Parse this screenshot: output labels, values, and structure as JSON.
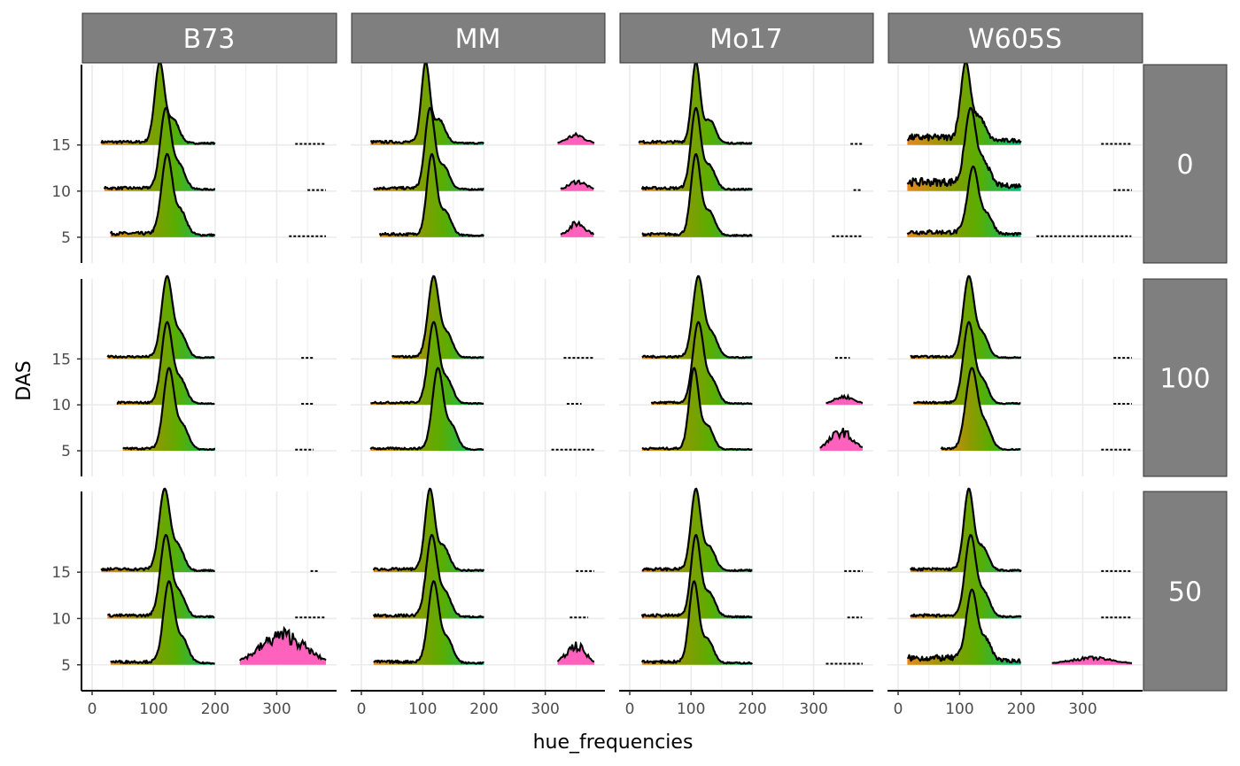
{
  "chart_data": {
    "type": "ridgeline",
    "title": "",
    "xlabel": "hue_frequencies",
    "ylabel": "DAS",
    "xlim": [
      0,
      380
    ],
    "x_ticks": [
      0,
      100,
      200,
      300
    ],
    "y_ticks": [
      5,
      10,
      15
    ],
    "col_facets": [
      "B73",
      "MM",
      "Mo17",
      "W605S"
    ],
    "row_facets": [
      "0",
      "100",
      "50"
    ],
    "grid": true,
    "legend": "none",
    "colors": {
      "strip_fill": "#7f7f7f",
      "strip_text": "#ffffff",
      "gridline": "#ebebeb",
      "ridge_line": "#000000",
      "fill_orange": "#e8891a",
      "fill_olive": "#8a9a00",
      "fill_green": "#5aad00",
      "fill_teal": "#00c080",
      "fill_pink": "#ff62bc"
    },
    "panels": [
      {
        "col": "B73",
        "row": "0",
        "ridges": [
          {
            "das": 5,
            "range": [
              30,
              200
            ],
            "peak_x": 122,
            "peak_h": 1.0,
            "width": 9,
            "tail": 0.05,
            "pink": {
              "range": [
                320,
                380
              ],
              "h": 0.0
            }
          },
          {
            "das": 10,
            "range": [
              20,
              200
            ],
            "peak_x": 120,
            "peak_h": 1.0,
            "width": 9,
            "tail": 0.04,
            "pink": {
              "range": [
                350,
                380
              ],
              "h": 0.0
            }
          },
          {
            "das": 15,
            "range": [
              15,
              200
            ],
            "peak_x": 110,
            "peak_h": 1.0,
            "width": 8,
            "tail": 0.04,
            "pink": {
              "range": [
                330,
                380
              ],
              "h": 0.0
            }
          }
        ]
      },
      {
        "col": "MM",
        "row": "0",
        "ridges": [
          {
            "das": 5,
            "range": [
              30,
              200
            ],
            "peak_x": 115,
            "peak_h": 1.0,
            "width": 8,
            "tail": 0.04,
            "pink": {
              "range": [
                325,
                380
              ],
              "h": 0.18
            }
          },
          {
            "das": 10,
            "range": [
              20,
              200
            ],
            "peak_x": 112,
            "peak_h": 1.0,
            "width": 8,
            "tail": 0.04,
            "pink": {
              "range": [
                325,
                380
              ],
              "h": 0.12
            }
          },
          {
            "das": 15,
            "range": [
              15,
              200
            ],
            "peak_x": 105,
            "peak_h": 1.0,
            "width": 7,
            "tail": 0.04,
            "pink": {
              "range": [
                320,
                380
              ],
              "h": 0.12
            }
          }
        ]
      },
      {
        "col": "Mo17",
        "row": "0",
        "ridges": [
          {
            "das": 5,
            "range": [
              20,
              200
            ],
            "peak_x": 108,
            "peak_h": 1.0,
            "width": 8,
            "tail": 0.04,
            "pink": {
              "range": [
                330,
                380
              ],
              "h": 0.0
            }
          },
          {
            "das": 10,
            "range": [
              20,
              200
            ],
            "peak_x": 108,
            "peak_h": 1.0,
            "width": 8,
            "tail": 0.04,
            "pink": {
              "range": [
                365,
                380
              ],
              "h": 0.0
            }
          },
          {
            "das": 15,
            "range": [
              15,
              200
            ],
            "peak_x": 108,
            "peak_h": 1.0,
            "width": 7,
            "tail": 0.04,
            "pink": {
              "range": [
                360,
                380
              ],
              "h": 0.0
            }
          }
        ]
      },
      {
        "col": "W605S",
        "row": "0",
        "ridges": [
          {
            "das": 5,
            "range": [
              15,
              200
            ],
            "peak_x": 122,
            "peak_h": 0.85,
            "width": 9,
            "tail": 0.08,
            "pink": {
              "range": [
                225,
                380
              ],
              "h": 0.0
            }
          },
          {
            "das": 10,
            "range": [
              15,
              200
            ],
            "peak_x": 118,
            "peak_h": 1.0,
            "width": 9,
            "tail": 0.12,
            "pink": {
              "range": [
                350,
                380
              ],
              "h": 0.0
            }
          },
          {
            "das": 15,
            "range": [
              15,
              200
            ],
            "peak_x": 110,
            "peak_h": 1.0,
            "width": 8,
            "tail": 0.1,
            "pink": {
              "range": [
                330,
                380
              ],
              "h": 0.0
            }
          }
        ]
      },
      {
        "col": "B73",
        "row": "100",
        "ridges": [
          {
            "das": 5,
            "range": [
              50,
              200
            ],
            "peak_x": 125,
            "peak_h": 1.0,
            "width": 9,
            "tail": 0.03,
            "pink": {
              "range": [
                330,
                360
              ],
              "h": 0.0
            }
          },
          {
            "das": 10,
            "range": [
              40,
              200
            ],
            "peak_x": 122,
            "peak_h": 1.0,
            "width": 9,
            "tail": 0.03,
            "pink": {
              "range": [
                340,
                360
              ],
              "h": 0.0
            }
          },
          {
            "das": 15,
            "range": [
              25,
              200
            ],
            "peak_x": 122,
            "peak_h": 1.0,
            "width": 9,
            "tail": 0.03,
            "pink": {
              "range": [
                340,
                360
              ],
              "h": 0.0
            }
          }
        ]
      },
      {
        "col": "MM",
        "row": "100",
        "ridges": [
          {
            "das": 5,
            "range": [
              15,
              200
            ],
            "peak_x": 125,
            "peak_h": 1.0,
            "width": 9,
            "tail": 0.03,
            "pink": {
              "range": [
                310,
                380
              ],
              "h": 0.0
            }
          },
          {
            "das": 10,
            "range": [
              15,
              200
            ],
            "peak_x": 118,
            "peak_h": 1.0,
            "width": 9,
            "tail": 0.03,
            "pink": {
              "range": [
                335,
                360
              ],
              "h": 0.0
            }
          },
          {
            "das": 15,
            "range": [
              50,
              200
            ],
            "peak_x": 118,
            "peak_h": 1.0,
            "width": 9,
            "tail": 0.03,
            "pink": {
              "range": [
                330,
                380
              ],
              "h": 0.0
            }
          }
        ]
      },
      {
        "col": "Mo17",
        "row": "100",
        "ridges": [
          {
            "das": 5,
            "range": [
              20,
              200
            ],
            "peak_x": 105,
            "peak_h": 1.0,
            "width": 8,
            "tail": 0.03,
            "pink": {
              "range": [
                310,
                380
              ],
              "h": 0.25
            }
          },
          {
            "das": 10,
            "range": [
              35,
              200
            ],
            "peak_x": 112,
            "peak_h": 1.0,
            "width": 9,
            "tail": 0.03,
            "pink": {
              "range": [
                320,
                380
              ],
              "h": 0.1
            }
          },
          {
            "das": 15,
            "range": [
              20,
              200
            ],
            "peak_x": 112,
            "peak_h": 1.0,
            "width": 9,
            "tail": 0.03,
            "pink": {
              "range": [
                335,
                360
              ],
              "h": 0.0
            }
          }
        ]
      },
      {
        "col": "W605S",
        "row": "100",
        "ridges": [
          {
            "das": 5,
            "range": [
              70,
              200
            ],
            "peak_x": 120,
            "peak_h": 1.0,
            "width": 10,
            "tail": 0.03,
            "pink": {
              "range": [
                330,
                380
              ],
              "h": 0.0
            }
          },
          {
            "das": 10,
            "range": [
              25,
              200
            ],
            "peak_x": 115,
            "peak_h": 1.0,
            "width": 9,
            "tail": 0.03,
            "pink": {
              "range": [
                350,
                380
              ],
              "h": 0.0
            }
          },
          {
            "das": 15,
            "range": [
              20,
              200
            ],
            "peak_x": 115,
            "peak_h": 1.0,
            "width": 9,
            "tail": 0.03,
            "pink": {
              "range": [
                350,
                380
              ],
              "h": 0.0
            }
          }
        ]
      },
      {
        "col": "B73",
        "row": "50",
        "ridges": [
          {
            "das": 5,
            "range": [
              30,
              200
            ],
            "peak_x": 125,
            "peak_h": 1.0,
            "width": 9,
            "tail": 0.04,
            "pink": {
              "range": [
                240,
                380
              ],
              "h": 0.4
            }
          },
          {
            "das": 10,
            "range": [
              25,
              200
            ],
            "peak_x": 120,
            "peak_h": 1.0,
            "width": 9,
            "tail": 0.04,
            "pink": {
              "range": [
                330,
                380
              ],
              "h": 0.0
            }
          },
          {
            "das": 15,
            "range": [
              15,
              200
            ],
            "peak_x": 118,
            "peak_h": 1.0,
            "width": 9,
            "tail": 0.04,
            "pink": {
              "range": [
                355,
                370
              ],
              "h": 0.0
            }
          }
        ]
      },
      {
        "col": "MM",
        "row": "50",
        "ridges": [
          {
            "das": 5,
            "range": [
              20,
              200
            ],
            "peak_x": 118,
            "peak_h": 1.0,
            "width": 9,
            "tail": 0.04,
            "pink": {
              "range": [
                320,
                380
              ],
              "h": 0.25
            }
          },
          {
            "das": 10,
            "range": [
              20,
              200
            ],
            "peak_x": 115,
            "peak_h": 1.0,
            "width": 9,
            "tail": 0.04,
            "pink": {
              "range": [
                340,
                370
              ],
              "h": 0.0
            }
          },
          {
            "das": 15,
            "range": [
              20,
              200
            ],
            "peak_x": 112,
            "peak_h": 1.0,
            "width": 8,
            "tail": 0.04,
            "pink": {
              "range": [
                350,
                380
              ],
              "h": 0.0
            }
          }
        ]
      },
      {
        "col": "Mo17",
        "row": "50",
        "ridges": [
          {
            "das": 5,
            "range": [
              20,
              200
            ],
            "peak_x": 105,
            "peak_h": 1.0,
            "width": 8,
            "tail": 0.04,
            "pink": {
              "range": [
                320,
                380
              ],
              "h": 0.0
            }
          },
          {
            "das": 10,
            "range": [
              20,
              200
            ],
            "peak_x": 108,
            "peak_h": 1.0,
            "width": 8,
            "tail": 0.04,
            "pink": {
              "range": [
                355,
                380
              ],
              "h": 0.0
            }
          },
          {
            "das": 15,
            "range": [
              20,
              200
            ],
            "peak_x": 108,
            "peak_h": 1.0,
            "width": 8,
            "tail": 0.04,
            "pink": {
              "range": [
                350,
                380
              ],
              "h": 0.0
            }
          }
        ]
      },
      {
        "col": "W605S",
        "row": "50",
        "ridges": [
          {
            "das": 5,
            "range": [
              15,
              200
            ],
            "peak_x": 120,
            "peak_h": 0.9,
            "width": 9,
            "tail": 0.1,
            "pink": {
              "range": [
                250,
                380
              ],
              "h": 0.08
            }
          },
          {
            "das": 10,
            "range": [
              20,
              200
            ],
            "peak_x": 118,
            "peak_h": 1.0,
            "width": 9,
            "tail": 0.04,
            "pink": {
              "range": [
                330,
                380
              ],
              "h": 0.0
            }
          },
          {
            "das": 15,
            "range": [
              20,
              200
            ],
            "peak_x": 115,
            "peak_h": 1.0,
            "width": 8,
            "tail": 0.04,
            "pink": {
              "range": [
                330,
                380
              ],
              "h": 0.0
            }
          }
        ]
      }
    ]
  }
}
